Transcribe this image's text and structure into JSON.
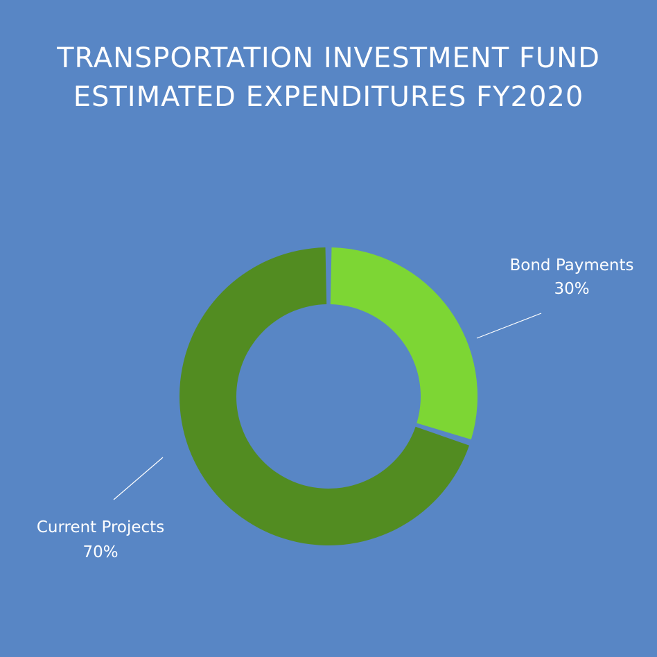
{
  "chart_data": {
    "type": "pie",
    "variant": "donut",
    "title_lines": [
      "TRANSPORTATION INVESTMENT FUND",
      "ESTIMATED EXPENDITURES FY2020"
    ],
    "slices": [
      {
        "label": "Bond Payments",
        "value": 30,
        "value_label": "30%",
        "color": "#7dd634"
      },
      {
        "label": "Current Projects",
        "value": 70,
        "value_label": "70%",
        "color": "#528c21"
      }
    ],
    "legend": "none",
    "background_color": "#5886c5"
  }
}
